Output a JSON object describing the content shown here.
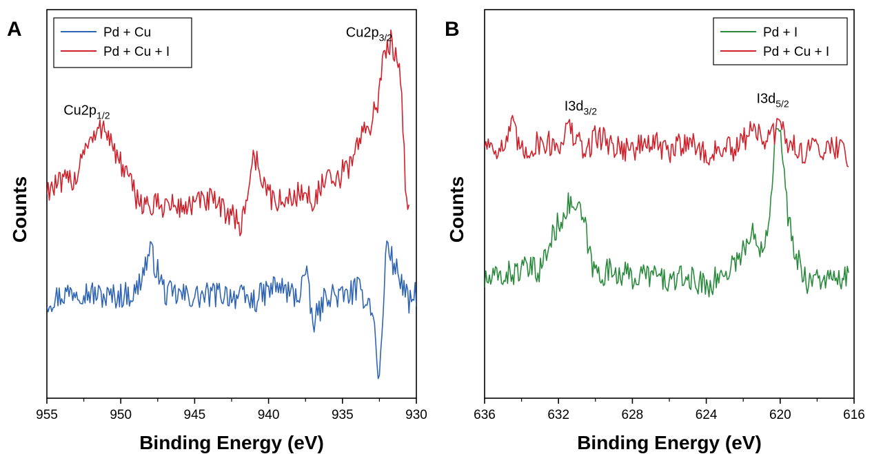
{
  "chart_data": [
    {
      "panel_label": "A",
      "type": "line",
      "xlabel": "Binding Energy (eV)",
      "ylabel": "Counts",
      "xlim": [
        955,
        930
      ],
      "x_reversed": true,
      "x_ticks": [
        "955",
        "950",
        "945",
        "940",
        "935",
        "930"
      ],
      "y_ticks_shown": false,
      "grid": false,
      "legend_position": "top-left",
      "series": [
        {
          "name": "Pd + Cu",
          "color": "#2f64b4",
          "x": [
            955,
            953,
            951,
            949,
            948,
            947,
            945,
            943,
            941,
            939.5,
            938,
            937.5,
            937,
            936,
            935,
            934,
            933,
            932.5,
            932,
            931.6,
            931,
            930.5,
            930
          ],
          "y": [
            0.25,
            0.28,
            0.26,
            0.27,
            0.38,
            0.27,
            0.26,
            0.27,
            0.25,
            0.29,
            0.26,
            0.33,
            0.19,
            0.27,
            0.26,
            0.28,
            0.24,
            0.04,
            0.41,
            0.35,
            0.3,
            0.24,
            0.27
          ]
        },
        {
          "name": "Pd + Cu + I",
          "color": "#d0202a",
          "x": [
            955,
            954,
            953,
            952.5,
            952,
            951.5,
            951.2,
            950.8,
            950.3,
            949.8,
            949,
            948,
            947,
            946,
            945,
            944,
            943,
            942.4,
            942,
            941.5,
            941,
            940,
            939,
            938,
            937,
            936.5,
            936,
            935.5,
            935,
            934.5,
            934,
            933.5,
            933,
            932.5,
            932.2,
            931.9,
            931.7,
            931.5,
            931.3,
            931.1,
            930.9,
            930.7,
            930.5
          ],
          "y": [
            0.54,
            0.55,
            0.57,
            0.65,
            0.66,
            0.68,
            0.71,
            0.68,
            0.62,
            0.59,
            0.52,
            0.49,
            0.5,
            0.49,
            0.5,
            0.51,
            0.48,
            0.48,
            0.43,
            0.51,
            0.63,
            0.52,
            0.5,
            0.53,
            0.51,
            0.54,
            0.56,
            0.55,
            0.58,
            0.6,
            0.66,
            0.68,
            0.72,
            0.78,
            0.88,
            0.91,
            0.92,
            0.89,
            0.9,
            0.84,
            0.7,
            0.53,
            0.49
          ]
        }
      ],
      "annotations": [
        {
          "label": "Cu2p",
          "sub": "1/2",
          "x": 952.3,
          "y": 0.73
        },
        {
          "label": "Cu2p",
          "sub": "3/2",
          "x": 933.2,
          "y": 0.93
        }
      ]
    },
    {
      "panel_label": "B",
      "type": "line",
      "xlabel": "Binding Energy (eV)",
      "ylabel": "Counts",
      "xlim": [
        636,
        616
      ],
      "x_reversed": true,
      "x_ticks": [
        "636",
        "632",
        "628",
        "624",
        "620",
        "616"
      ],
      "y_ticks_shown": false,
      "grid": false,
      "legend_position": "top-right",
      "series": [
        {
          "name": "Pd + I",
          "color": "#2a8a3c",
          "x": [
            636,
            634,
            633,
            632.2,
            631.8,
            631.4,
            631.0,
            630.6,
            630.2,
            629.8,
            629,
            628,
            627,
            626,
            625,
            624,
            623,
            622,
            621.5,
            621,
            620.6,
            620.3,
            620.1,
            619.9,
            619.6,
            619.3,
            619,
            618.5,
            618,
            617,
            616.3
          ],
          "y": [
            0.3,
            0.33,
            0.33,
            0.43,
            0.47,
            0.5,
            0.49,
            0.45,
            0.34,
            0.32,
            0.33,
            0.31,
            0.32,
            0.3,
            0.31,
            0.29,
            0.32,
            0.38,
            0.42,
            0.39,
            0.46,
            0.66,
            0.73,
            0.62,
            0.48,
            0.39,
            0.35,
            0.3,
            0.31,
            0.3,
            0.31
          ]
        },
        {
          "name": "Pd + Cu + I",
          "color": "#d0202a",
          "x": [
            636,
            635,
            634.5,
            634,
            633,
            632,
            631.5,
            631,
            630.5,
            630,
            629,
            628,
            627,
            626,
            625,
            624,
            623,
            622.5,
            622,
            621.5,
            621,
            620.5,
            620.2,
            620,
            619.7,
            619.2,
            619,
            618.5,
            618,
            617.5,
            617,
            616.5,
            616.3
          ],
          "y": [
            0.66,
            0.64,
            0.7,
            0.63,
            0.66,
            0.65,
            0.7,
            0.66,
            0.63,
            0.68,
            0.65,
            0.64,
            0.66,
            0.63,
            0.67,
            0.62,
            0.65,
            0.63,
            0.66,
            0.71,
            0.66,
            0.67,
            0.69,
            0.71,
            0.66,
            0.65,
            0.64,
            0.63,
            0.66,
            0.64,
            0.65,
            0.64,
            0.61
          ]
        }
      ],
      "annotations": [
        {
          "label": "I3d",
          "sub": "3/2",
          "x": 630.8,
          "y": 0.74
        },
        {
          "label": "I3d",
          "sub": "5/2",
          "x": 620.4,
          "y": 0.76
        }
      ]
    }
  ]
}
